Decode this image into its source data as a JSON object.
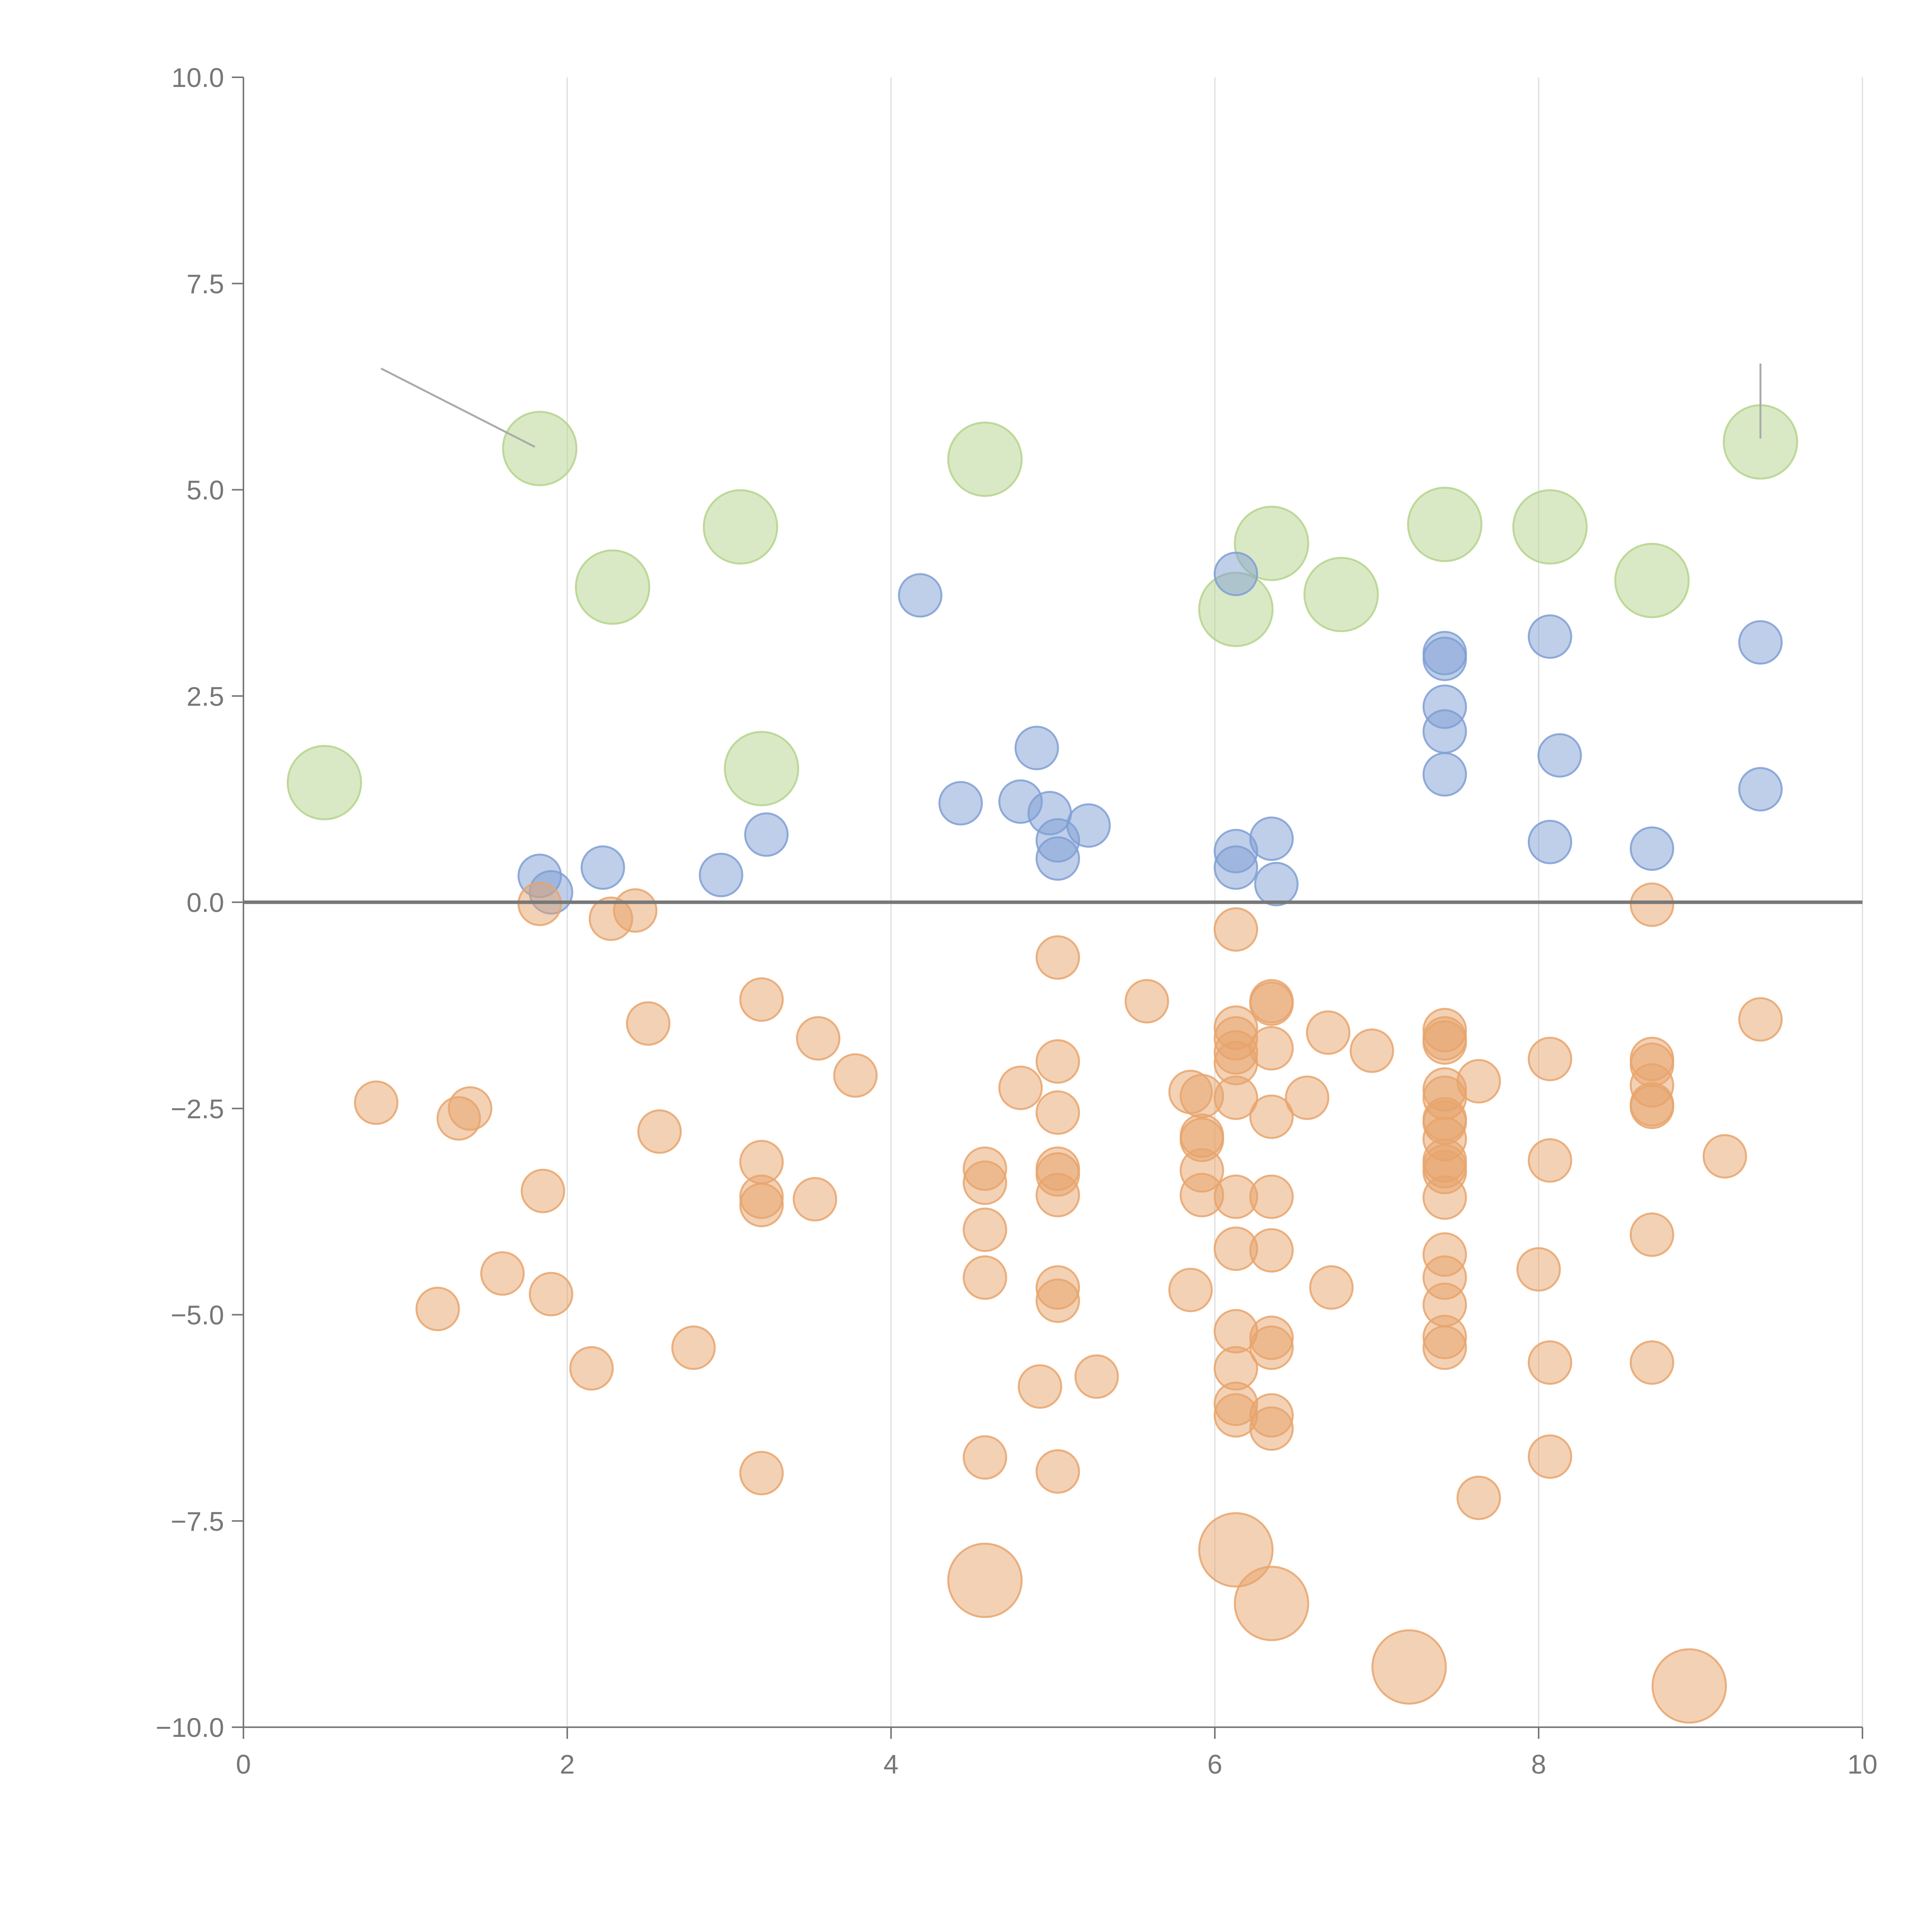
{
  "chart_data": {
    "type": "scatter",
    "title": "",
    "xlabel": "",
    "ylabel": "",
    "xlim": [
      0,
      10
    ],
    "ylim": [
      -10,
      10
    ],
    "x_ticks": [
      0,
      2,
      4,
      6,
      8,
      10
    ],
    "x_tick_labels": [
      "0",
      "2",
      "4",
      "6",
      "8",
      "10"
    ],
    "y_ticks": [
      10,
      7.5,
      5,
      2.5,
      0,
      -2.5,
      -5,
      -7.5,
      -10
    ],
    "y_tick_labels": [
      "10.0",
      "7.5",
      "5.0",
      "2.5",
      "0.0",
      "−2.5",
      "−5.0",
      "−7.5",
      "−10.0"
    ],
    "vertical_grid": true,
    "horizontal_grid": false,
    "zero_line": true,
    "legend": "none",
    "colors": {
      "green": "#b5d38c",
      "blue": "#7f9fd3",
      "orange": "#e8a46c"
    },
    "series": [
      {
        "color_key": "green",
        "size": "large",
        "points": [
          [
            0.5,
            1.45
          ],
          [
            1.83,
            5.5
          ],
          [
            2.28,
            3.82
          ],
          [
            3.07,
            4.55
          ],
          [
            3.2,
            1.62
          ],
          [
            4.58,
            5.37
          ],
          [
            6.13,
            3.55
          ],
          [
            6.35,
            4.35
          ],
          [
            6.78,
            3.73
          ],
          [
            7.42,
            4.58
          ],
          [
            8.07,
            4.55
          ],
          [
            8.7,
            3.9
          ],
          [
            9.37,
            5.58
          ]
        ]
      },
      {
        "color_key": "blue",
        "size": "small",
        "points": [
          [
            1.83,
            0.32
          ],
          [
            1.9,
            0.12
          ],
          [
            2.22,
            0.42
          ],
          [
            2.95,
            0.33
          ],
          [
            3.23,
            0.82
          ],
          [
            4.18,
            3.72
          ],
          [
            4.43,
            1.2
          ],
          [
            4.8,
            1.22
          ],
          [
            4.9,
            1.87
          ],
          [
            4.98,
            1.08
          ],
          [
            5.03,
            0.75
          ],
          [
            5.03,
            0.53
          ],
          [
            5.22,
            0.93
          ],
          [
            6.13,
            3.98
          ],
          [
            6.13,
            0.62
          ],
          [
            6.13,
            0.42
          ],
          [
            6.35,
            0.77
          ],
          [
            6.38,
            0.22
          ],
          [
            7.42,
            3.02
          ],
          [
            7.42,
            2.95
          ],
          [
            7.42,
            2.37
          ],
          [
            7.42,
            2.07
          ],
          [
            7.42,
            1.55
          ],
          [
            8.07,
            3.22
          ],
          [
            8.13,
            1.78
          ],
          [
            8.07,
            0.73
          ],
          [
            8.7,
            0.65
          ],
          [
            9.37,
            3.15
          ],
          [
            9.37,
            1.37
          ]
        ]
      },
      {
        "color_key": "orange",
        "size": "small",
        "points": [
          [
            1.83,
            -0.02
          ],
          [
            2.27,
            -0.2
          ],
          [
            2.42,
            -0.1
          ],
          [
            0.82,
            -2.43
          ],
          [
            1.33,
            -2.62
          ],
          [
            1.4,
            -2.5
          ],
          [
            1.85,
            -3.5
          ],
          [
            2.5,
            -1.47
          ],
          [
            2.57,
            -2.78
          ],
          [
            1.6,
            -4.5
          ],
          [
            1.9,
            -4.75
          ],
          [
            1.2,
            -4.93
          ],
          [
            2.15,
            -5.65
          ],
          [
            2.78,
            -5.4
          ],
          [
            3.2,
            -1.18
          ],
          [
            3.55,
            -1.65
          ],
          [
            3.78,
            -2.1
          ],
          [
            3.2,
            -3.15
          ],
          [
            3.2,
            -3.57
          ],
          [
            3.2,
            -3.67
          ],
          [
            3.53,
            -3.6
          ],
          [
            3.2,
            -6.92
          ],
          [
            4.58,
            -3.23
          ],
          [
            4.58,
            -3.4
          ],
          [
            4.58,
            -3.97
          ],
          [
            4.58,
            -4.55
          ],
          [
            4.58,
            -6.73
          ],
          [
            4.8,
            -2.25
          ],
          [
            5.03,
            -0.67
          ],
          [
            5.03,
            -1.93
          ],
          [
            5.03,
            -2.55
          ],
          [
            5.03,
            -3.23
          ],
          [
            5.03,
            -3.3
          ],
          [
            5.03,
            -3.55
          ],
          [
            5.03,
            -4.67
          ],
          [
            5.03,
            -4.83
          ],
          [
            4.92,
            -5.87
          ],
          [
            5.27,
            -5.75
          ],
          [
            5.03,
            -6.9
          ],
          [
            5.58,
            -1.2
          ],
          [
            5.85,
            -2.3
          ],
          [
            5.92,
            -2.35
          ],
          [
            5.92,
            -2.83
          ],
          [
            5.92,
            -2.88
          ],
          [
            5.92,
            -3.25
          ],
          [
            5.92,
            -3.55
          ],
          [
            5.85,
            -4.7
          ],
          [
            6.13,
            -0.33
          ],
          [
            6.13,
            -1.52
          ],
          [
            6.13,
            -1.65
          ],
          [
            6.13,
            -1.82
          ],
          [
            6.13,
            -1.95
          ],
          [
            6.13,
            -2.37
          ],
          [
            6.13,
            -3.57
          ],
          [
            6.13,
            -4.2
          ],
          [
            6.13,
            -5.2
          ],
          [
            6.13,
            -5.65
          ],
          [
            6.13,
            -6.08
          ],
          [
            6.13,
            -6.22
          ],
          [
            6.35,
            -1.2
          ],
          [
            6.35,
            -1.23
          ],
          [
            6.35,
            -1.77
          ],
          [
            6.35,
            -2.6
          ],
          [
            6.35,
            -3.57
          ],
          [
            6.35,
            -4.22
          ],
          [
            6.35,
            -5.28
          ],
          [
            6.35,
            -5.4
          ],
          [
            6.35,
            -6.22
          ],
          [
            6.35,
            -6.38
          ],
          [
            6.57,
            -2.37
          ],
          [
            6.7,
            -1.58
          ],
          [
            6.72,
            -4.67
          ],
          [
            6.97,
            -1.8
          ],
          [
            7.42,
            -1.55
          ],
          [
            7.42,
            -1.65
          ],
          [
            7.42,
            -1.7
          ],
          [
            7.42,
            -2.27
          ],
          [
            7.42,
            -2.37
          ],
          [
            7.42,
            -2.63
          ],
          [
            7.42,
            -2.67
          ],
          [
            7.42,
            -2.87
          ],
          [
            7.42,
            -3.13
          ],
          [
            7.42,
            -3.2
          ],
          [
            7.42,
            -3.27
          ],
          [
            7.42,
            -3.58
          ],
          [
            7.42,
            -4.27
          ],
          [
            7.42,
            -4.55
          ],
          [
            7.42,
            -4.88
          ],
          [
            7.42,
            -5.27
          ],
          [
            7.42,
            -5.4
          ],
          [
            7.63,
            -2.17
          ],
          [
            7.63,
            -7.22
          ],
          [
            8.0,
            -4.45
          ],
          [
            8.07,
            -1.9
          ],
          [
            8.07,
            -3.13
          ],
          [
            8.07,
            -5.58
          ],
          [
            8.07,
            -6.72
          ],
          [
            8.7,
            -0.03
          ],
          [
            8.7,
            -1.9
          ],
          [
            8.7,
            -1.97
          ],
          [
            8.7,
            -2.22
          ],
          [
            8.7,
            -2.45
          ],
          [
            8.7,
            -2.48
          ],
          [
            8.7,
            -4.03
          ],
          [
            8.7,
            -5.58
          ],
          [
            9.15,
            -3.08
          ],
          [
            9.37,
            -1.42
          ]
        ]
      },
      {
        "color_key": "orange",
        "size": "large",
        "points": [
          [
            4.58,
            -8.22
          ],
          [
            6.13,
            -7.85
          ],
          [
            6.35,
            -8.5
          ],
          [
            7.2,
            -9.27
          ],
          [
            8.93,
            -9.5
          ]
        ]
      }
    ],
    "leader_lines": [
      {
        "from": [
          0.85,
          6.47
        ],
        "to": [
          1.8,
          5.52
        ]
      },
      {
        "from": [
          9.37,
          6.53
        ],
        "to": [
          9.37,
          5.62
        ]
      }
    ]
  }
}
